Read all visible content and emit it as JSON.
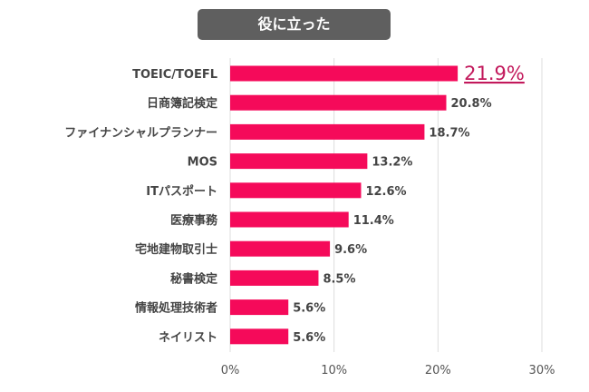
{
  "chart_data": {
    "type": "bar",
    "orientation": "horizontal",
    "title": "役に立った",
    "categories": [
      "TOEIC/TOEFL",
      "日商簿記検定",
      "ファイナンシャルプランナー",
      "MOS",
      "ITパスポート",
      "医療事務",
      "宅地建物取引士",
      "秘書検定",
      "情報処理技術者",
      "ネイリスト"
    ],
    "values": [
      21.9,
      20.8,
      18.7,
      13.2,
      12.6,
      11.4,
      9.6,
      8.5,
      5.6,
      5.6
    ],
    "value_labels": [
      "21.9%",
      "20.8%",
      "18.7%",
      "13.2%",
      "12.6%",
      "11.4%",
      "9.6%",
      "8.5%",
      "5.6%",
      "5.6%"
    ],
    "highlighted_index": 0,
    "xlim": [
      0,
      30
    ],
    "x_ticks": [
      "0%",
      "10%",
      "20%",
      "30%"
    ],
    "grid": true,
    "colors": {
      "bar": "#f50a5a",
      "highlight_label": "#c2185b",
      "title_bg": "#5f5f5f"
    }
  }
}
